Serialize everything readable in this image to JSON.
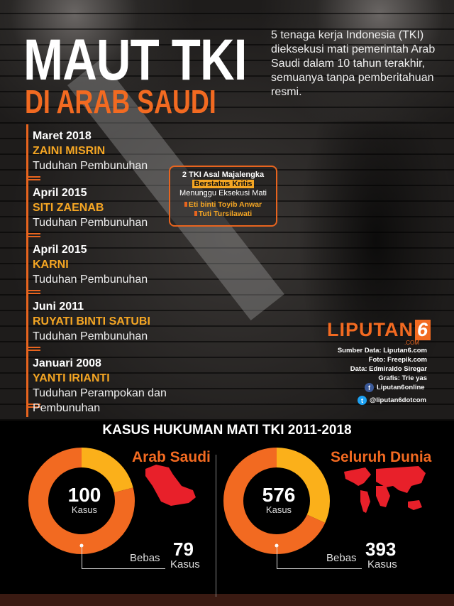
{
  "header": {
    "title_line1": "MAUT TKI",
    "title_line2": "DI ARAB SAUDI",
    "intro": "5 tenaga kerja Indonesia (TKI) dieksekusi mati pemerintah Arab Saudi dalam 10 tahun terakhir, semuanya tanpa pemberitahuan resmi."
  },
  "timeline": [
    {
      "date": "Maret 2018",
      "name": "ZAINI MISRIN",
      "charge": "Tuduhan Pembunuhan"
    },
    {
      "date": "April 2015",
      "name": "SITI ZAENAB",
      "charge": "Tuduhan Pembunuhan"
    },
    {
      "date": "April 2015",
      "name": "KARNI",
      "charge": "Tuduhan Pembunuhan"
    },
    {
      "date": "Juni 2011",
      "name": "RUYATI BINTI SATUBI",
      "charge": "Tuduhan Pembunuhan"
    },
    {
      "date": "Januari 2008",
      "name": "YANTI IRIANTI",
      "charge": "Tuduhan Perampokan dan Pembunuhan"
    }
  ],
  "critical_box": {
    "line1": "2 TKI Asal Majalengka",
    "highlight": "Berstatus Kritis",
    "line3": "Menunggu Eksekusi Mati",
    "people": [
      "Eti binti Toyib Anwar",
      "Tuti Tursilawati"
    ]
  },
  "brand": {
    "logo_text": "LIPUTAN",
    "logo_number": "6",
    "logo_suffix": ".COM",
    "credits": [
      "Sumber Data: Liputan6.com",
      "Foto: Freepik.com",
      "Data: Edmiraldo Siregar",
      "Grafis: Trie yas"
    ],
    "facebook": "Liputan6online",
    "twitter": "@liputan6dotcom"
  },
  "stats": {
    "heading": "KASUS HUKUMAN MATI TKI 2011-2018",
    "colors": {
      "released": "#f26a21",
      "other": "#fbb01a",
      "map": "#e8202a"
    },
    "panels": [
      {
        "title": "Arab Saudi",
        "total": "100",
        "total_unit": "Kasus",
        "released_label": "Bebas",
        "released": "79",
        "released_unit": "Kasus",
        "total_value": 100,
        "released_value": 79,
        "map_icon": "saudi-arabia-map-icon"
      },
      {
        "title": "Seluruh Dunia",
        "total": "576",
        "total_unit": "Kasus",
        "released_label": "Bebas",
        "released": "393",
        "released_unit": "Kasus",
        "total_value": 576,
        "released_value": 393,
        "map_icon": "world-map-icon"
      }
    ]
  }
}
